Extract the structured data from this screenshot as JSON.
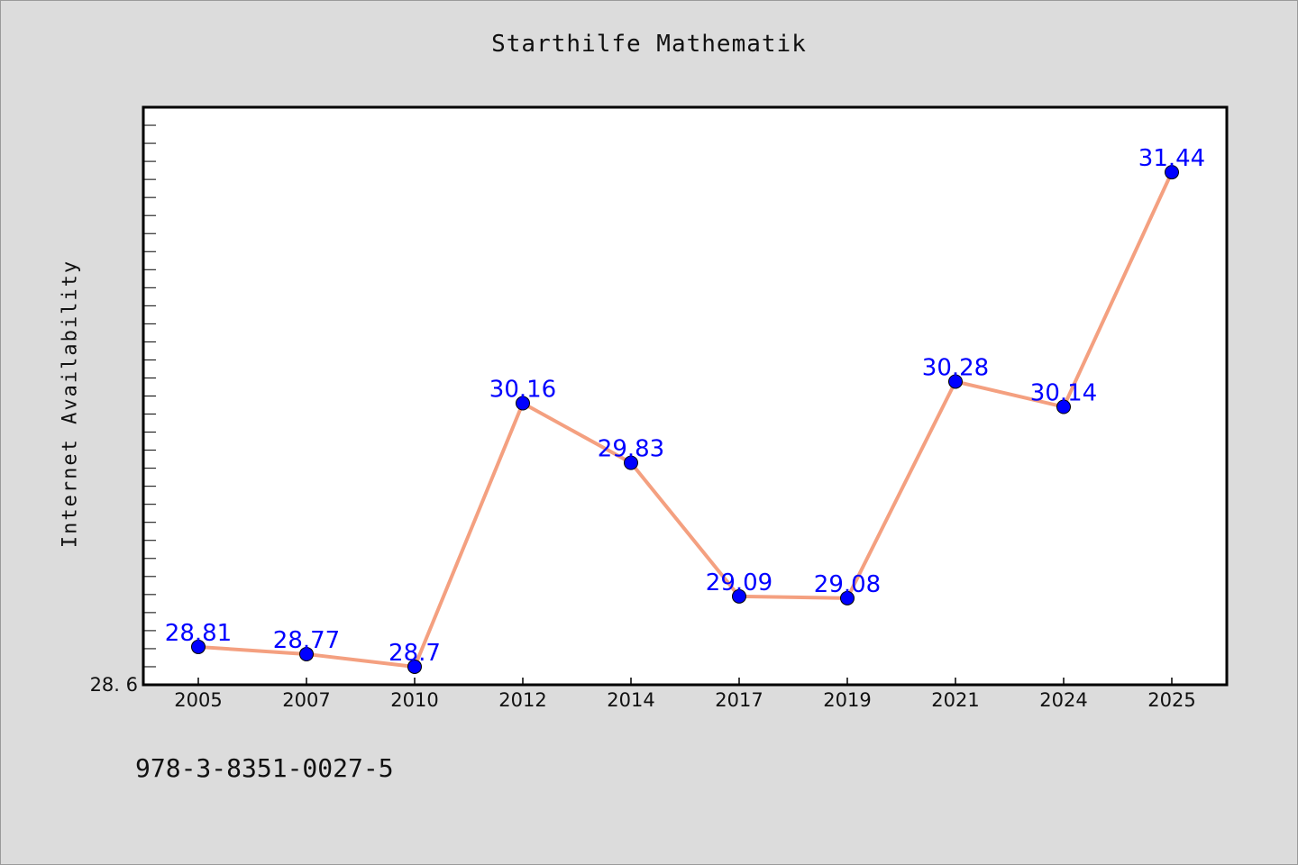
{
  "chart_data": {
    "type": "line",
    "title": "Starthilfe Mathematik",
    "xlabel": "",
    "ylabel": "Internet Availability",
    "categories": [
      "2005",
      "2007",
      "2010",
      "2012",
      "2014",
      "2017",
      "2019",
      "2021",
      "2024",
      "2025"
    ],
    "series": [
      {
        "values": [
          28.81,
          28.77,
          28.7,
          30.16,
          29.83,
          29.09,
          29.08,
          30.28,
          30.14,
          31.44
        ]
      }
    ],
    "data_labels": [
      "28.81",
      "28.77",
      "28.7",
      "30.16",
      "29.83",
      "29.09",
      "29.08",
      "30.28",
      "30.14",
      "31.44"
    ],
    "ylim": [
      28.6,
      31.8
    ],
    "ytick_labels": [
      "28.6"
    ],
    "grid": false,
    "legend": "none",
    "line_color": "#f4a080",
    "marker_color": "#0000ff",
    "label_color": "#0000ff"
  },
  "footer": {
    "isbn": "978-3-8351-0027-5"
  }
}
